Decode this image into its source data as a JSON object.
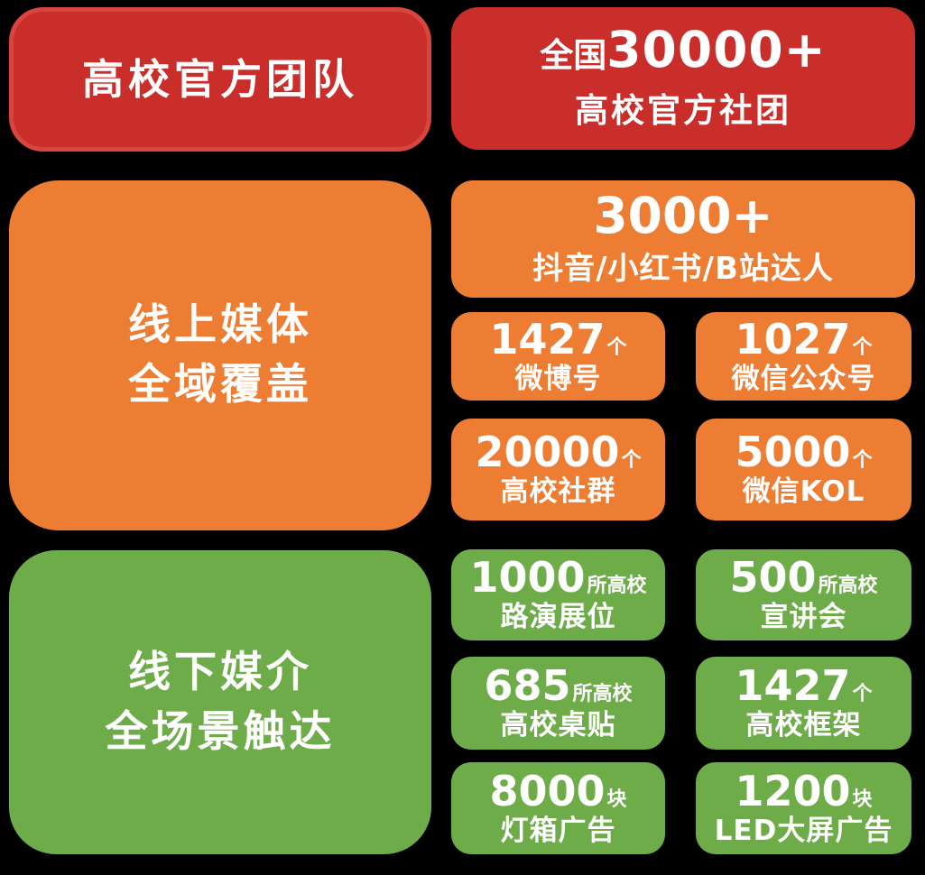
{
  "palette": {
    "background": "#000000",
    "red": "#CA2E2B",
    "red_border": "#D8453E",
    "orange": "#EC7D33",
    "green": "#6DAC49",
    "text": "#FFFFFF"
  },
  "header": {
    "left_title": "高校官方团队",
    "right": {
      "prefix": "全国",
      "number": "30000+",
      "label": "高校官方社团"
    }
  },
  "online": {
    "left_title_line1": "线上媒体",
    "left_title_line2": "全域覆盖",
    "feature": {
      "number": "3000+",
      "label": "抖音/小红书/B站达人"
    },
    "stats": [
      {
        "number": "1427",
        "unit": "个",
        "label": "微博号"
      },
      {
        "number": "1027",
        "unit": "个",
        "label": "微信公众号"
      },
      {
        "number": "20000",
        "unit": "个",
        "label": "高校社群"
      },
      {
        "number": "5000",
        "unit": "个",
        "label": "微信KOL"
      }
    ]
  },
  "offline": {
    "left_title_line1": "线下媒介",
    "left_title_line2": "全场景触达",
    "stats": [
      {
        "number": "1000",
        "unit": "所高校",
        "label": "路演展位"
      },
      {
        "number": "500",
        "unit": "所高校",
        "label": "宣讲会"
      },
      {
        "number": "685",
        "unit": "所高校",
        "label": "高校桌贴"
      },
      {
        "number": "1427",
        "unit": "个",
        "label": "高校框架"
      },
      {
        "number": "8000",
        "unit": "块",
        "label": "灯箱广告"
      },
      {
        "number": "1200",
        "unit": "块",
        "label": "LED大屏广告"
      }
    ]
  }
}
